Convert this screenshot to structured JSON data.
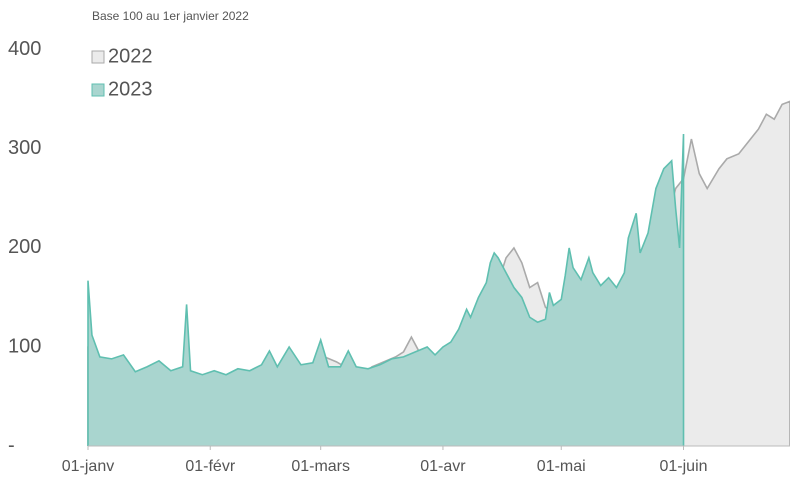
{
  "chart_data": {
    "type": "area",
    "subtitle": "Base 100 au 1er janvier 2022",
    "xlim": [
      0,
      178
    ],
    "ylim": [
      0,
      412
    ],
    "xticks": [
      {
        "value": 0,
        "label": "01-janv"
      },
      {
        "value": 31,
        "label": "01-févr"
      },
      {
        "value": 59,
        "label": "01-mars"
      },
      {
        "value": 90,
        "label": "01-avr"
      },
      {
        "value": 120,
        "label": "01-mai"
      },
      {
        "value": 151,
        "label": "01-juin"
      }
    ],
    "yticks": [
      {
        "value": 0,
        "label": "-"
      },
      100,
      200,
      300,
      400
    ],
    "series": [
      {
        "name": "2022",
        "color": "#aaaaaa",
        "fill": "#ebebeb",
        "x": [
          0,
          2,
          5,
          8,
          10,
          13,
          16,
          19,
          22,
          25,
          28,
          31,
          34,
          37,
          40,
          43,
          46,
          50,
          54,
          57,
          60,
          63,
          66,
          69,
          72,
          75,
          78,
          80,
          82,
          84,
          86,
          88,
          90,
          93,
          96,
          99,
          102,
          104,
          106,
          108,
          110,
          112,
          114,
          116,
          118,
          120,
          123,
          126,
          129,
          132,
          135,
          138,
          141,
          144,
          147,
          149,
          151,
          153,
          155,
          157,
          160,
          162,
          165,
          168,
          170,
          172,
          174,
          176,
          178
        ],
        "values": [
          98,
          85,
          85,
          75,
          65,
          62,
          65,
          60,
          58,
          55,
          50,
          55,
          60,
          62,
          65,
          62,
          60,
          65,
          70,
          80,
          90,
          85,
          78,
          70,
          80,
          85,
          90,
          95,
          110,
          95,
          90,
          88,
          90,
          100,
          110,
          130,
          150,
          165,
          190,
          200,
          185,
          160,
          165,
          140,
          135,
          130,
          150,
          140,
          145,
          135,
          150,
          165,
          170,
          200,
          230,
          260,
          270,
          310,
          275,
          260,
          280,
          290,
          295,
          310,
          320,
          335,
          330,
          345,
          348
        ]
      },
      {
        "name": "2023",
        "color": "#5fbfb0",
        "fill": "#a9d5cf",
        "x": [
          0,
          1,
          3,
          6,
          9,
          12,
          15,
          18,
          21,
          24,
          25,
          26,
          29,
          32,
          35,
          38,
          41,
          44,
          46,
          48,
          51,
          54,
          57,
          59,
          61,
          64,
          66,
          68,
          71,
          74,
          77,
          80,
          83,
          86,
          88,
          90,
          92,
          94,
          96,
          97,
          99,
          101,
          102,
          103,
          104,
          106,
          108,
          110,
          112,
          114,
          116,
          117,
          118,
          120,
          121,
          122,
          123,
          125,
          127,
          128,
          130,
          132,
          134,
          136,
          137,
          139,
          140,
          142,
          144,
          146,
          148,
          149,
          150,
          151
        ],
        "values": [
          167,
          112,
          90,
          88,
          92,
          75,
          80,
          86,
          76,
          80,
          143,
          76,
          72,
          76,
          72,
          78,
          76,
          82,
          96,
          80,
          100,
          82,
          84,
          107,
          80,
          80,
          96,
          80,
          78,
          82,
          88,
          90,
          95,
          100,
          92,
          100,
          105,
          118,
          138,
          130,
          150,
          165,
          185,
          195,
          190,
          175,
          160,
          150,
          130,
          125,
          128,
          155,
          142,
          148,
          172,
          200,
          180,
          168,
          190,
          175,
          162,
          170,
          160,
          175,
          210,
          235,
          195,
          215,
          260,
          280,
          288,
          240,
          200,
          315
        ]
      }
    ]
  }
}
